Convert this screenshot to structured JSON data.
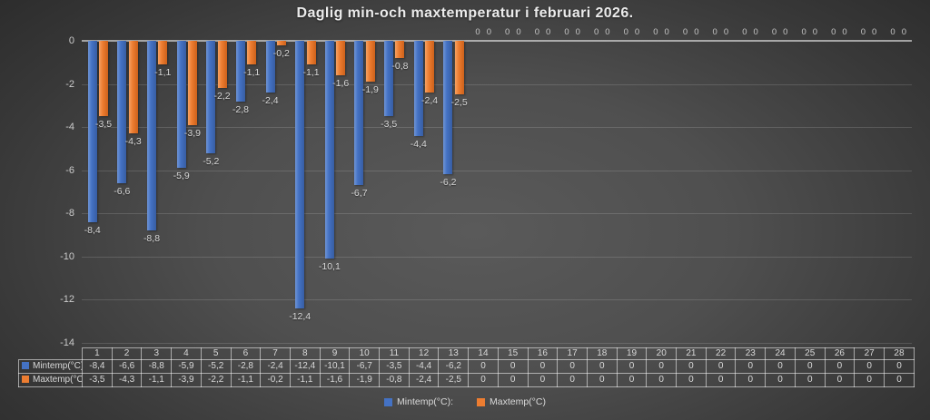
{
  "title": "Daglig min-och maxtemperatur i februari 2026.",
  "legend": {
    "items": [
      {
        "label": "Mintemp(°C):",
        "color": "#4472C4"
      },
      {
        "label": "Maxtemp(°C)",
        "color": "#ED7D31"
      }
    ]
  },
  "chart_data": {
    "type": "bar",
    "title": "Daglig min-och maxtemperatur i februari 2026.",
    "categories": [
      "1",
      "2",
      "3",
      "4",
      "5",
      "6",
      "7",
      "8",
      "9",
      "10",
      "11",
      "12",
      "13",
      "14",
      "15",
      "16",
      "17",
      "18",
      "19",
      "20",
      "21",
      "22",
      "23",
      "24",
      "25",
      "26",
      "27",
      "28"
    ],
    "series": [
      {
        "name": "Mintemp(°C):",
        "color": "#4472C4",
        "values": [
          -8.4,
          -6.6,
          -8.8,
          -5.9,
          -5.2,
          -2.8,
          -2.4,
          -12.4,
          -10.1,
          -6.7,
          -3.5,
          -4.4,
          -6.2,
          0,
          0,
          0,
          0,
          0,
          0,
          0,
          0,
          0,
          0,
          0,
          0,
          0,
          0,
          0
        ]
      },
      {
        "name": "Maxtemp(°C)",
        "color": "#ED7D31",
        "values": [
          -3.5,
          -4.3,
          -1.1,
          -3.9,
          -2.2,
          -1.1,
          -0.2,
          -1.1,
          -1.6,
          -1.9,
          -0.8,
          -2.4,
          -2.5,
          0,
          0,
          0,
          0,
          0,
          0,
          0,
          0,
          0,
          0,
          0,
          0,
          0,
          0,
          0
        ]
      }
    ],
    "xlabel": "",
    "ylabel": "",
    "ylim": [
      -14,
      0
    ],
    "y_ticks": [
      0,
      -2,
      -4,
      -6,
      -8,
      -10,
      -12,
      -14
    ],
    "grid": true,
    "data_labels": true,
    "decimal_separator": ",",
    "legend_position": "bottom",
    "data_table": true
  }
}
